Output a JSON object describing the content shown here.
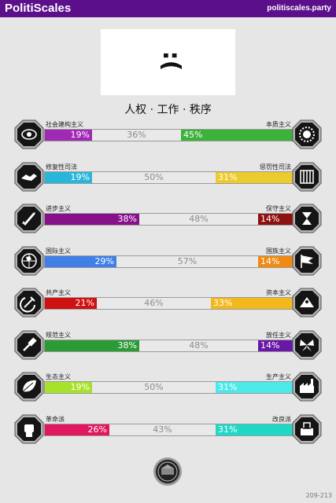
{
  "header": {
    "brand": "PolitiScales",
    "site": "politiscales.party"
  },
  "flag": {
    "face": ":("
  },
  "slogan": "人权 · 工作 · 秩序",
  "axes": [
    {
      "left_label": "社会建构主义",
      "right_label": "本质主义",
      "left_pct": 19,
      "mid_pct": 36,
      "right_pct": 45,
      "left_text": "19%",
      "mid_text": "36%",
      "right_text": "45%",
      "left_color": "#a12ab5",
      "right_color": "#3cb23a",
      "right_text_color": "#ffffff",
      "left_icon": "eye-icon",
      "right_icon": "sunflower-icon"
    },
    {
      "left_label": "修复性司法",
      "right_label": "惩罚性司法",
      "left_pct": 19,
      "mid_pct": 50,
      "right_pct": 31,
      "left_text": "19%",
      "mid_text": "50%",
      "right_text": "31%",
      "left_color": "#28b6da",
      "right_color": "#eccb2e",
      "right_text_color": "#ffffff",
      "left_icon": "handshake-icon",
      "right_icon": "prison-bars-icon"
    },
    {
      "left_label": "进步主义",
      "right_label": "保守主义",
      "left_pct": 38,
      "mid_pct": 48,
      "right_pct": 14,
      "left_text": "38%",
      "mid_text": "48%",
      "right_text": "14%",
      "left_color": "#87118a",
      "right_color": "#8d1111",
      "right_text_color": "#ffffff",
      "left_icon": "rocket-icon",
      "right_icon": "hourglass-icon"
    },
    {
      "left_label": "国际主义",
      "right_label": "国族主义",
      "left_pct": 29,
      "mid_pct": 57,
      "right_pct": 14,
      "left_text": "29%",
      "mid_text": "57%",
      "right_text": "14%",
      "left_color": "#3f7fe6",
      "right_color": "#f08a12",
      "right_text_color": "#ffffff",
      "left_icon": "globe-icon",
      "right_icon": "flag-icon"
    },
    {
      "left_label": "共产主义",
      "right_label": "资本主义",
      "left_pct": 21,
      "mid_pct": 46,
      "right_pct": 33,
      "left_text": "21%",
      "mid_text": "46%",
      "right_text": "33%",
      "left_color": "#cf1111",
      "right_color": "#f3b91c",
      "right_text_color": "#ffffff",
      "left_icon": "hammer-sickle-icon",
      "right_icon": "pyramid-icon"
    },
    {
      "left_label": "规范主义",
      "right_label": "放任主义",
      "left_pct": 38,
      "mid_pct": 48,
      "right_pct": 14,
      "left_text": "38%",
      "mid_text": "48%",
      "right_text": "14%",
      "left_color": "#2b9c35",
      "right_color": "#6a17a8",
      "right_text_color": "#ffffff",
      "left_icon": "gavel-icon",
      "right_icon": "butterfly-icon"
    },
    {
      "left_label": "生态主义",
      "right_label": "生产主义",
      "left_pct": 19,
      "mid_pct": 50,
      "right_pct": 31,
      "left_text": "19%",
      "mid_text": "50%",
      "right_text": "31%",
      "left_color": "#a6e22a",
      "right_color": "#4ce9ea",
      "right_text_color": "#ffffff",
      "left_icon": "leaf-icon",
      "right_icon": "factory-icon"
    },
    {
      "left_label": "革命派",
      "right_label": "改良派",
      "left_pct": 26,
      "mid_pct": 43,
      "right_pct": 31,
      "left_text": "26%",
      "mid_text": "43%",
      "right_text": "31%",
      "left_color": "#e3175f",
      "right_color": "#1fd8c6",
      "right_text_color": "#ffffff",
      "left_icon": "fist-icon",
      "right_icon": "ballot-icon"
    }
  ],
  "footer": {
    "id": "209-213"
  }
}
